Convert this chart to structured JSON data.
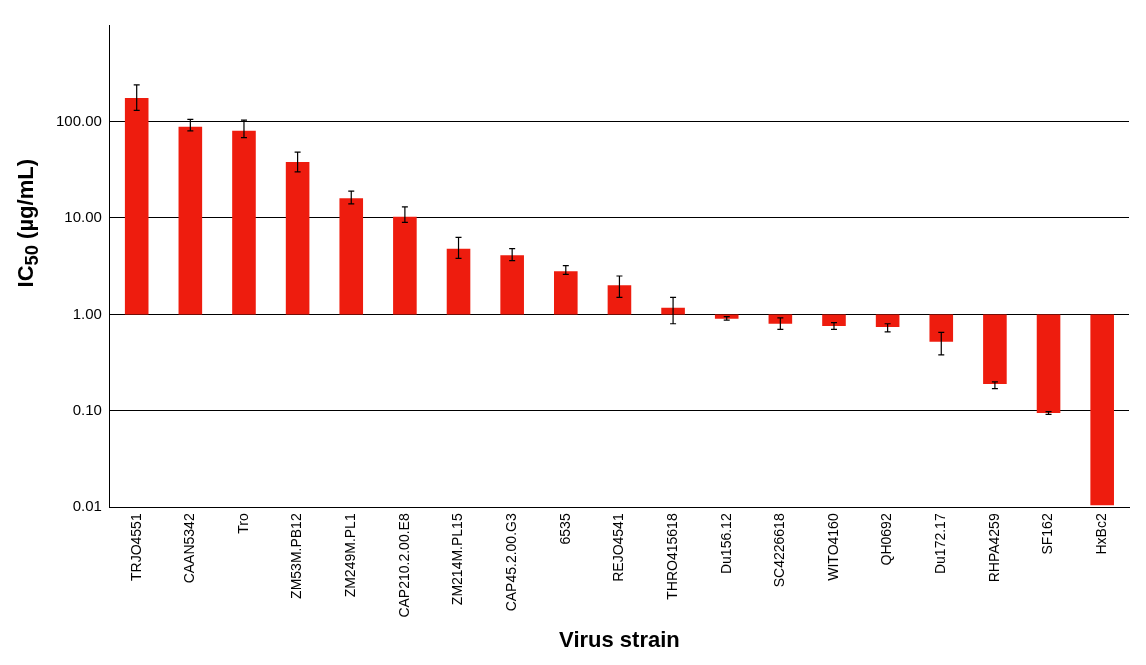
{
  "chart_data": {
    "type": "bar",
    "xlabel": "Virus strain",
    "ylabel": "IC$_{50}$ (µg/mL)",
    "categories": [
      "TRJO4551",
      "CAAN5342",
      "Tro",
      "ZM53M.PB12",
      "ZM249M.PL1",
      "CAP210.2.00.E8",
      "ZM214M.PL15",
      "CAP45.2.00.G3",
      "6535",
      "REJO4541",
      "THRO415618",
      "Du156.12",
      "SC4226618",
      "WITO4160",
      "QH0692",
      "Du172.17",
      "RHPA4259",
      "SF162",
      "HxBc2"
    ],
    "base": [
      1,
      1,
      1,
      1,
      1,
      1,
      1,
      1,
      1,
      1,
      1,
      1,
      1,
      1,
      1,
      1,
      1,
      1,
      1
    ],
    "values": [
      174,
      87,
      79,
      37,
      15,
      9.3,
      3.8,
      3.1,
      1.8,
      1.0,
      0.17,
      -0.1,
      -0.2,
      -0.24,
      -0.26,
      -0.48,
      -0.81,
      -0.905,
      -0.9895
    ],
    "errors": [
      [
        130,
        240
      ],
      [
        80,
        105
      ],
      [
        68,
        103
      ],
      [
        30,
        48
      ],
      [
        14,
        19
      ],
      [
        9,
        13
      ],
      [
        3.8,
        6.3
      ],
      [
        3.6,
        4.8
      ],
      [
        2.6,
        3.2
      ],
      [
        1.5,
        2.5
      ],
      [
        0.8,
        1.5
      ],
      [
        0.87,
        0.95
      ],
      [
        0.7,
        0.92
      ],
      [
        0.7,
        0.82
      ],
      [
        0.66,
        0.8
      ],
      [
        0.38,
        0.65
      ],
      [
        0.17,
        0.2
      ],
      [
        0.092,
        0.098
      ],
      null
    ],
    "color": "#ee1c0e",
    "log": true,
    "grid": "y",
    "ylim": [
      0.01,
      1000
    ],
    "yticks": [
      {
        "value": 0.01,
        "label": "0.01"
      },
      {
        "value": 0.1,
        "label": "0.10"
      },
      {
        "value": 1,
        "label": "1.00"
      },
      {
        "value": 10,
        "label": "10.00"
      },
      {
        "value": 100,
        "label": "100.00"
      }
    ]
  }
}
